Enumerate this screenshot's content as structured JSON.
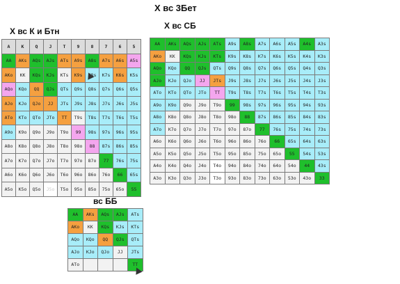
{
  "titles": {
    "main": "Х вс 3Бет",
    "chart1": "Х вс К и Бтн",
    "chart2": "Х вс СБ",
    "chart3": "вс ББ"
  },
  "colors": {
    "green": "#1fbf2c",
    "orange": "#f5a040",
    "pink": "#f4a6ee",
    "cyan": "#a8edf9",
    "light": "#f2f2f2",
    "white": "#ffffff",
    "header": "#dcdcdc"
  },
  "chart1": {
    "header": [
      "A",
      "K",
      "Q",
      "J",
      "T",
      "9",
      "8",
      "7",
      "6",
      "5"
    ],
    "rows": [
      [
        "AA",
        "AKs",
        "AQs",
        "AJs",
        "ATs",
        "A9s",
        "A8s",
        "A7s",
        "A6s",
        "A5s"
      ],
      [
        "AKo",
        "KK",
        "KQs",
        "KJs",
        "KTs",
        "K9s",
        "K8s",
        "K7s",
        "K6s",
        "K5s"
      ],
      [
        "AQo",
        "KQo",
        "QQ",
        "QJs",
        "QTs",
        "Q9s",
        "Q8s",
        "Q7s",
        "Q6s",
        "Q5s"
      ],
      [
        "AJo",
        "KJo",
        "QJo",
        "JJ",
        "JTs",
        "J9s",
        "J8s",
        "J7s",
        "J6s",
        "J5s"
      ],
      [
        "ATo",
        "KTo",
        "QTo",
        "JTo",
        "TT",
        "T9s",
        "T8s",
        "T7s",
        "T6s",
        "T5s"
      ],
      [
        "A9o",
        "K9o",
        "Q9o",
        "J9o",
        "T9o",
        "99",
        "98s",
        "97s",
        "96s",
        "95s"
      ],
      [
        "A8o",
        "K8o",
        "Q8o",
        "J8o",
        "T8o",
        "98o",
        "88",
        "87s",
        "86s",
        "85s"
      ],
      [
        "A7o",
        "K7o",
        "Q7o",
        "J7o",
        "T7o",
        "97o",
        "87o",
        "77",
        "76s",
        "75s"
      ],
      [
        "A6o",
        "K6o",
        "Q6o",
        "J6o",
        "T6o",
        "96o",
        "86o",
        "76o",
        "66",
        "65s"
      ],
      [
        "A5o",
        "K5o",
        "Q5o",
        "J5o",
        "T5o",
        "95o",
        "85o",
        "75o",
        "65o",
        "55"
      ]
    ],
    "colors": [
      [
        "green",
        "orange",
        "green",
        "green",
        "orange",
        "orange",
        "green",
        "orange",
        "orange",
        "pink"
      ],
      [
        "orange",
        "light",
        "green",
        "green",
        "light",
        "orange",
        "cyan",
        "cyan",
        "orange",
        "cyan"
      ],
      [
        "pink",
        "cyan",
        "orange",
        "green",
        "cyan",
        "cyan",
        "cyan",
        "cyan",
        "cyan",
        "cyan"
      ],
      [
        "orange",
        "cyan",
        "orange",
        "orange",
        "cyan",
        "cyan",
        "cyan",
        "cyan",
        "cyan",
        "cyan"
      ],
      [
        "orange",
        "cyan",
        "cyan",
        "cyan",
        "orange",
        "light",
        "cyan",
        "cyan",
        "cyan",
        "cyan"
      ],
      [
        "cyan",
        "light",
        "light",
        "light",
        "light",
        "pink",
        "cyan",
        "cyan",
        "cyan",
        "cyan"
      ],
      [
        "light",
        "light",
        "light",
        "light",
        "light",
        "light",
        "pink",
        "cyan",
        "cyan",
        "cyan"
      ],
      [
        "light",
        "light",
        "light",
        "light",
        "light",
        "light",
        "light",
        "green",
        "cyan",
        "cyan"
      ],
      [
        "light",
        "light",
        "light",
        "light",
        "light",
        "light",
        "light",
        "light",
        "green",
        "cyan"
      ],
      [
        "light",
        "light",
        "light",
        "ghost",
        "light",
        "light",
        "light",
        "light",
        "light",
        "green"
      ]
    ]
  },
  "chart2": {
    "rows": [
      [
        "AA",
        "AKs",
        "AQs",
        "AJs",
        "ATs",
        "A9s",
        "A8s",
        "A7s",
        "A6s",
        "A5s",
        "A4s",
        "A3s"
      ],
      [
        "AKo",
        "KK",
        "KQs",
        "KJs",
        "KTs",
        "K9s",
        "K8s",
        "K7s",
        "K6s",
        "K5s",
        "K4s",
        "K3s"
      ],
      [
        "AQo",
        "KQo",
        "QQ",
        "QJs",
        "QTs",
        "Q9s",
        "Q8s",
        "Q7s",
        "Q6s",
        "Q5s",
        "Q4s",
        "Q3s"
      ],
      [
        "AJo",
        "KJo",
        "QJo",
        "JJ",
        "JTs",
        "J9s",
        "J8s",
        "J7s",
        "J6s",
        "J5s",
        "J4s",
        "J3s"
      ],
      [
        "ATo",
        "KTo",
        "QTo",
        "JTo",
        "TT",
        "T9s",
        "T8s",
        "T7s",
        "T6s",
        "T5s",
        "T4s",
        "T3s"
      ],
      [
        "A9o",
        "K9o",
        "Q9o",
        "J9o",
        "T9o",
        "99",
        "98s",
        "97s",
        "96s",
        "95s",
        "94s",
        "93s"
      ],
      [
        "A8o",
        "K8o",
        "Q8o",
        "J8o",
        "T8o",
        "98o",
        "88",
        "87s",
        "86s",
        "85s",
        "84s",
        "83s"
      ],
      [
        "A7o",
        "K7o",
        "Q7o",
        "J7o",
        "T7o",
        "97o",
        "87o",
        "77",
        "76s",
        "75s",
        "74s",
        "73s"
      ],
      [
        "A6o",
        "K6o",
        "Q6o",
        "J6o",
        "T6o",
        "96o",
        "86o",
        "76o",
        "66",
        "65s",
        "64s",
        "63s"
      ],
      [
        "A5o",
        "K5o",
        "Q5o",
        "J5o",
        "T5o",
        "95o",
        "85o",
        "75o",
        "65o",
        "55",
        "54s",
        "53s"
      ],
      [
        "A4o",
        "K4o",
        "Q4o",
        "J4o",
        "T4o",
        "94o",
        "84o",
        "74o",
        "64o",
        "54o",
        "44",
        "43s"
      ],
      [
        "A3o",
        "K3o",
        "Q3o",
        "J3o",
        "T3o",
        "93o",
        "83o",
        "73o",
        "63o",
        "53o",
        "43o",
        "33"
      ]
    ],
    "colors": [
      [
        "green",
        "green",
        "green",
        "green",
        "green",
        "cyan",
        "green",
        "cyan",
        "cyan",
        "cyan",
        "green",
        "cyan"
      ],
      [
        "orange",
        "light",
        "green",
        "green",
        "green",
        "cyan",
        "cyan",
        "cyan",
        "cyan",
        "cyan",
        "cyan",
        "cyan"
      ],
      [
        "green",
        "cyan",
        "green",
        "green",
        "cyan",
        "cyan",
        "cyan",
        "cyan",
        "cyan",
        "cyan",
        "cyan",
        "cyan"
      ],
      [
        "green",
        "cyan",
        "cyan",
        "pink",
        "orange",
        "cyan",
        "cyan",
        "cyan",
        "cyan",
        "cyan",
        "cyan",
        "cyan"
      ],
      [
        "cyan",
        "cyan",
        "cyan",
        "cyan",
        "pink",
        "cyan",
        "cyan",
        "cyan",
        "cyan",
        "cyan",
        "cyan",
        "cyan"
      ],
      [
        "cyan",
        "cyan",
        "light",
        "light",
        "light",
        "green",
        "cyan",
        "cyan",
        "cyan",
        "cyan",
        "cyan",
        "cyan"
      ],
      [
        "cyan",
        "light",
        "light",
        "light",
        "light",
        "light",
        "green",
        "cyan",
        "cyan",
        "cyan",
        "cyan",
        "cyan"
      ],
      [
        "cyan",
        "light",
        "light",
        "light",
        "light",
        "light",
        "light",
        "green",
        "cyan",
        "cyan",
        "cyan",
        "cyan"
      ],
      [
        "light",
        "light",
        "light",
        "light",
        "light",
        "light",
        "light",
        "light",
        "green",
        "cyan",
        "cyan",
        "cyan"
      ],
      [
        "light",
        "light",
        "light",
        "light",
        "light",
        "light",
        "light",
        "light",
        "light",
        "green",
        "cyan",
        "cyan"
      ],
      [
        "light",
        "light",
        "light",
        "light",
        "white",
        "light",
        "light",
        "light",
        "light",
        "light",
        "green",
        "cyan"
      ],
      [
        "light",
        "light",
        "light",
        "light",
        "white",
        "light",
        "light",
        "light",
        "light",
        "light",
        "light",
        "green"
      ]
    ]
  },
  "chart3": {
    "rows": [
      [
        "AA",
        "AKs",
        "AQs",
        "AJs",
        "ATs"
      ],
      [
        "AKo",
        "KK",
        "KQs",
        "KJs",
        "KTs"
      ],
      [
        "AQo",
        "KQo",
        "QQ",
        "QJs",
        "QTs"
      ],
      [
        "AJo",
        "KJo",
        "QJo",
        "JJ",
        "JTs"
      ],
      [
        "ATo",
        "",
        "",
        "",
        "TT"
      ]
    ],
    "colors": [
      [
        "green",
        "orange",
        "green",
        "green",
        "cyan"
      ],
      [
        "orange",
        "light",
        "green",
        "cyan",
        "cyan"
      ],
      [
        "cyan",
        "cyan",
        "orange",
        "green",
        "cyan"
      ],
      [
        "cyan",
        "cyan",
        "cyan",
        "light",
        "cyan"
      ],
      [
        "light",
        "light",
        "light",
        "light",
        "green"
      ]
    ]
  }
}
